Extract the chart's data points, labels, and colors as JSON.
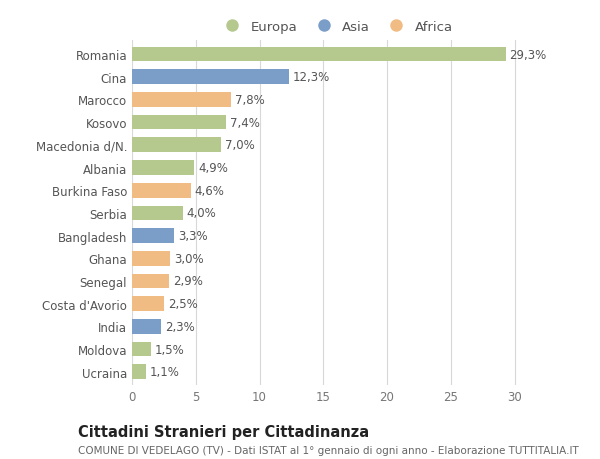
{
  "countries": [
    "Romania",
    "Cina",
    "Marocco",
    "Kosovo",
    "Macedonia d/N.",
    "Albania",
    "Burkina Faso",
    "Serbia",
    "Bangladesh",
    "Ghana",
    "Senegal",
    "Costa d'Avorio",
    "India",
    "Moldova",
    "Ucraina"
  ],
  "values": [
    29.3,
    12.3,
    7.8,
    7.4,
    7.0,
    4.9,
    4.6,
    4.0,
    3.3,
    3.0,
    2.9,
    2.5,
    2.3,
    1.5,
    1.1
  ],
  "labels": [
    "29,3%",
    "12,3%",
    "7,8%",
    "7,4%",
    "7,0%",
    "4,9%",
    "4,6%",
    "4,0%",
    "3,3%",
    "3,0%",
    "2,9%",
    "2,5%",
    "2,3%",
    "1,5%",
    "1,1%"
  ],
  "continents": [
    "Europa",
    "Asia",
    "Africa",
    "Europa",
    "Europa",
    "Europa",
    "Africa",
    "Europa",
    "Asia",
    "Africa",
    "Africa",
    "Africa",
    "Asia",
    "Europa",
    "Europa"
  ],
  "colors": {
    "Europa": "#b5c98e",
    "Asia": "#7b9ec9",
    "Africa": "#f0bc84"
  },
  "legend_labels": [
    "Europa",
    "Asia",
    "Africa"
  ],
  "legend_colors": [
    "#b5c98e",
    "#7b9ec9",
    "#f0bc84"
  ],
  "xlim": [
    0,
    32
  ],
  "xticks": [
    0,
    5,
    10,
    15,
    20,
    25,
    30
  ],
  "title": "Cittadini Stranieri per Cittadinanza",
  "subtitle": "COMUNE DI VEDELAGO (TV) - Dati ISTAT al 1° gennaio di ogni anno - Elaborazione TUTTITALIA.IT",
  "bg_color": "#ffffff",
  "grid_color": "#d8d8d8",
  "bar_height": 0.65,
  "label_fontsize": 8.5,
  "tick_fontsize": 8.5,
  "title_fontsize": 10.5,
  "subtitle_fontsize": 7.5
}
